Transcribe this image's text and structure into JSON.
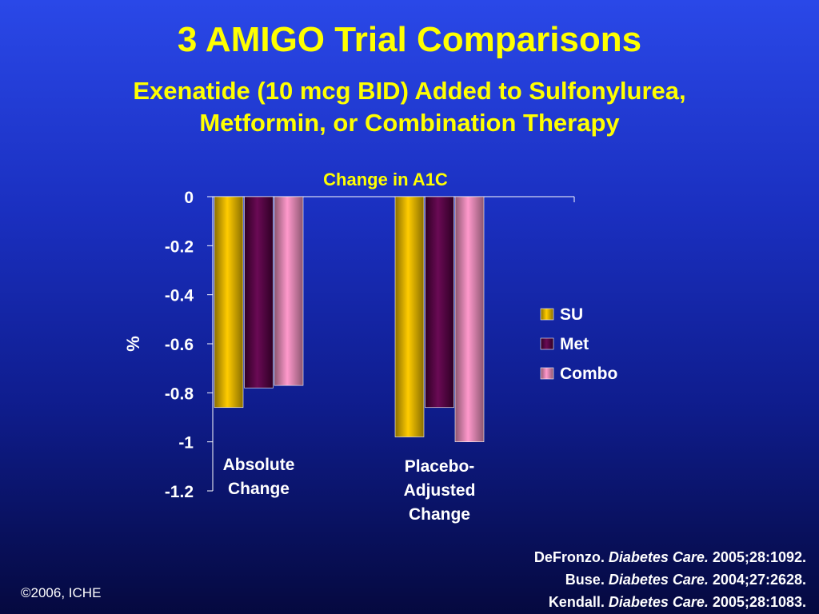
{
  "slide": {
    "title": "3 AMIGO Trial Comparisons",
    "subtitle_line1": "Exenatide (10 mcg BID) Added to Sulfonylurea,",
    "subtitle_line2": "Metformin, or Combination Therapy",
    "copyright": "©2006, ICHE",
    "references": [
      {
        "author": "DeFronzo.",
        "journal": "Diabetes Care.",
        "citation": "2005;28:1092."
      },
      {
        "author": "Buse.",
        "journal": "Diabetes Care.",
        "citation": "2004;27:2628."
      },
      {
        "author": "Kendall.",
        "journal": "Diabetes Care.",
        "citation": "2005;28:1083."
      }
    ],
    "colors": {
      "background": "#1a2fbf",
      "title": "#ffff00",
      "text": "#ffffff"
    }
  },
  "chart_data": {
    "type": "bar",
    "title": "Change in A1C",
    "ylabel": "%",
    "ylim": [
      -1.2,
      0
    ],
    "yticks": [
      0,
      -0.2,
      -0.4,
      -0.6,
      -0.8,
      -1,
      -1.2
    ],
    "ytick_labels": [
      "0",
      "-0.2",
      "-0.4",
      "-0.6",
      "-0.8",
      "-1",
      "-1.2"
    ],
    "categories": [
      "Absolute Change",
      "Placebo-Adjusted Change"
    ],
    "category_label_lines": [
      [
        "Absolute",
        "Change"
      ],
      [
        "Placebo-",
        "Adjusted",
        "Change"
      ]
    ],
    "series": [
      {
        "name": "SU",
        "values": [
          -0.86,
          -0.98
        ],
        "color": "#ffcc00"
      },
      {
        "name": "Met",
        "values": [
          -0.78,
          -0.86
        ],
        "color": "#6a0a55"
      },
      {
        "name": "Combo",
        "values": [
          -0.77,
          -1.0
        ],
        "color": "#ff99cc"
      }
    ],
    "legend_position": "right",
    "grid": false
  }
}
